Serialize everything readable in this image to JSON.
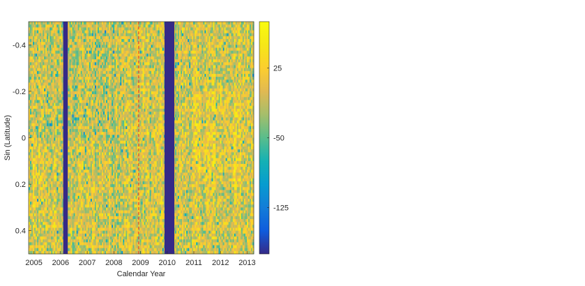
{
  "chart_data": {
    "type": "heatmap",
    "title": "",
    "xlabel": "Calendar Year",
    "ylabel": "Sin (Latitude)",
    "xlim": [
      2004.8,
      2013.25
    ],
    "ylim": [
      -0.5,
      0.5
    ],
    "y_direction": "reversed",
    "x_ticks": [
      2005,
      2006,
      2007,
      2008,
      2009,
      2010,
      2011,
      2012,
      2013
    ],
    "x_tick_labels": [
      "2005",
      "2006",
      "2007",
      "2008",
      "2009",
      "2010",
      "2011",
      "2012",
      "2013"
    ],
    "y_ticks": [
      -0.4,
      -0.2,
      0,
      0.2,
      0.4
    ],
    "y_tick_labels": [
      "-0.4",
      "-0.2",
      "0",
      "0.2",
      "0.4"
    ],
    "colorbar": {
      "colormap": "parula",
      "range": [
        -175,
        75
      ],
      "ticks": [
        25,
        -50,
        -125
      ],
      "tick_labels": [
        "25",
        "-50",
        "-125"
      ]
    },
    "data_gaps": [
      {
        "x_start": 2006.1,
        "x_end": 2006.27,
        "color": "#352a87"
      },
      {
        "x_start": 2009.9,
        "x_end": 2010.27,
        "color": "#352a87"
      }
    ],
    "reference_line": {
      "x": 2008.93,
      "color": "#e8472e",
      "style": "dashed"
    },
    "grid": false,
    "legend": "none"
  }
}
